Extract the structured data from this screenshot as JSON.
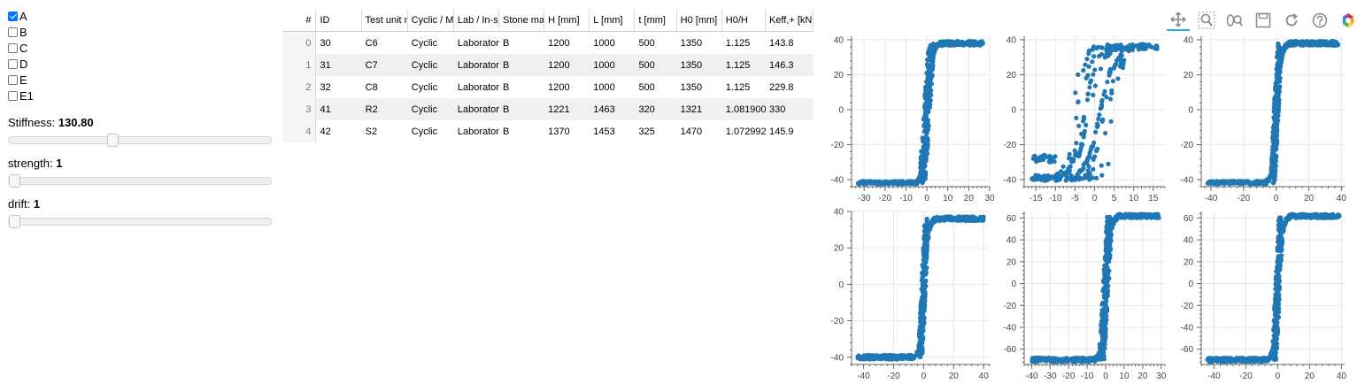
{
  "checkboxes": [
    {
      "label": "A",
      "checked": true
    },
    {
      "label": "B",
      "checked": false
    },
    {
      "label": "C",
      "checked": false
    },
    {
      "label": "D",
      "checked": false
    },
    {
      "label": "E",
      "checked": false
    },
    {
      "label": "E1",
      "checked": false
    }
  ],
  "sliders": [
    {
      "label": "Stiffness: ",
      "value": "130.80",
      "fraction": 0.39
    },
    {
      "label": "strength: ",
      "value": "1",
      "fraction": 0.0
    },
    {
      "label": "drift: ",
      "value": "1",
      "fraction": 0.0
    }
  ],
  "table": {
    "index_header": "#",
    "columns": [
      "ID",
      "Test unit n",
      "Cyclic / M",
      "Lab / In-s",
      "Stone ma",
      "H [mm]",
      "L [mm]",
      "t [mm]",
      "H0 [mm]",
      "H0/H",
      "Keff,+ [kN"
    ],
    "rows": [
      {
        "index": "0",
        "cells": [
          "30",
          "C6",
          "Cyclic",
          "Laborator",
          "B",
          "1200",
          "1000",
          "500",
          "1350",
          "1.125",
          "143.8"
        ]
      },
      {
        "index": "1",
        "cells": [
          "31",
          "C7",
          "Cyclic",
          "Laborator",
          "B",
          "1200",
          "1000",
          "500",
          "1350",
          "1.125",
          "146.3"
        ]
      },
      {
        "index": "2",
        "cells": [
          "32",
          "C8",
          "Cyclic",
          "Laborator",
          "B",
          "1200",
          "1000",
          "500",
          "1350",
          "1.125",
          "229.8"
        ]
      },
      {
        "index": "3",
        "cells": [
          "41",
          "R2",
          "Cyclic",
          "Laborator",
          "B",
          "1221",
          "1463",
          "320",
          "1321",
          "1.081900",
          "330"
        ]
      },
      {
        "index": "4",
        "cells": [
          "42",
          "S2",
          "Cyclic",
          "Laborator",
          "B",
          "1370",
          "1453",
          "325",
          "1470",
          "1.072992",
          "145.9"
        ]
      }
    ]
  },
  "toolbar": [
    "pan-icon",
    "box-zoom-icon",
    "wheel-zoom-icon",
    "save-icon",
    "reset-icon",
    "help-icon",
    "bokeh-logo-icon"
  ],
  "colors": {
    "marker": "#1f77b4",
    "accent": "#26aae1",
    "checkbox": "#0075ff"
  },
  "chart_data": [
    {
      "type": "scatter",
      "shape": "backbone",
      "xlim": [
        -36,
        30
      ],
      "ylim": [
        -44,
        42
      ],
      "xticks": [
        "-30",
        "-20",
        "-10",
        "0",
        "10",
        "20",
        "30"
      ],
      "xtick_values": [
        -30,
        -20,
        -10,
        0,
        10,
        20,
        30
      ],
      "yticks": [
        "-40",
        "-20",
        "0",
        "20",
        "40"
      ],
      "ytick_values": [
        -40,
        -20,
        0,
        20,
        40
      ],
      "x_range": [
        -33,
        27
      ],
      "y_range": [
        -42,
        38
      ],
      "grid": true
    },
    {
      "type": "scatter",
      "shape": "hysteresis",
      "xlim": [
        -18,
        18
      ],
      "ylim": [
        -44,
        42
      ],
      "xticks": [
        "-15",
        "-10",
        "-5",
        "0",
        "5",
        "10",
        "15"
      ],
      "xtick_values": [
        -15,
        -10,
        -5,
        0,
        5,
        10,
        15
      ],
      "yticks": [
        "-40",
        "-20",
        "0",
        "20",
        "40"
      ],
      "ytick_values": [
        -40,
        -20,
        0,
        20,
        40
      ],
      "x_range": [
        -16,
        16
      ],
      "y_range": [
        -41,
        38
      ],
      "grid": true
    },
    {
      "type": "scatter",
      "shape": "backbone",
      "xlim": [
        -46,
        42
      ],
      "ylim": [
        -44,
        42
      ],
      "xticks": [
        "-40",
        "-20",
        "0",
        "20",
        "40"
      ],
      "xtick_values": [
        -40,
        -20,
        0,
        20,
        40
      ],
      "yticks": [
        "-40",
        "-20",
        "0",
        "20",
        "40"
      ],
      "ytick_values": [
        -40,
        -20,
        0,
        20,
        40
      ],
      "x_range": [
        -42,
        38
      ],
      "y_range": [
        -42,
        38
      ],
      "grid": true
    },
    {
      "type": "scatter",
      "shape": "backbone",
      "xlim": [
        -48,
        44
      ],
      "ylim": [
        -44,
        40
      ],
      "xticks": [
        "-40",
        "-20",
        "0",
        "20",
        "40"
      ],
      "xtick_values": [
        -40,
        -20,
        0,
        20,
        40
      ],
      "yticks": [
        "-40",
        "-20",
        "0",
        "20",
        "40"
      ],
      "ytick_values": [
        -40,
        -20,
        0,
        20,
        40
      ],
      "x_range": [
        -44,
        40
      ],
      "y_range": [
        -40,
        36
      ],
      "grid": true
    },
    {
      "type": "scatter",
      "shape": "backbone",
      "xlim": [
        -44,
        32
      ],
      "ylim": [
        -74,
        66
      ],
      "xticks": [
        "-40",
        "-30",
        "-20",
        "-10",
        "0",
        "10",
        "20",
        "30"
      ],
      "xtick_values": [
        -40,
        -30,
        -20,
        -10,
        0,
        10,
        20,
        30
      ],
      "yticks": [
        "-60",
        "-40",
        "-20",
        "0",
        "20",
        "40",
        "60"
      ],
      "ytick_values": [
        -60,
        -40,
        -20,
        0,
        20,
        40,
        60
      ],
      "x_range": [
        -40,
        29
      ],
      "y_range": [
        -70,
        62
      ],
      "grid": true
    },
    {
      "type": "scatter",
      "shape": "backbone",
      "xlim": [
        -48,
        42
      ],
      "ylim": [
        -74,
        66
      ],
      "xticks": [
        "-40",
        "-20",
        "0",
        "20",
        "40"
      ],
      "xtick_values": [
        -40,
        -20,
        0,
        20,
        40
      ],
      "yticks": [
        "-60",
        "-40",
        "-20",
        "0",
        "20",
        "40",
        "60"
      ],
      "ytick_values": [
        -60,
        -40,
        -20,
        0,
        20,
        40,
        60
      ],
      "x_range": [
        -44,
        39
      ],
      "y_range": [
        -70,
        62
      ],
      "grid": true
    }
  ]
}
